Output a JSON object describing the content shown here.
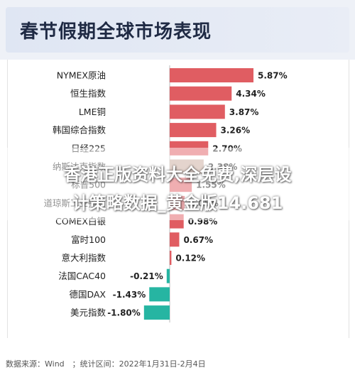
{
  "title": "春节假期全球市场表现",
  "overlay": {
    "line1": "香港正版资料大全免费,深层设",
    "line2": "计策略数据_黄金版14.681"
  },
  "source": "数据来源：Wind　；统计区间：2022年1月31日-2月4日",
  "colors": {
    "positive": "#e05d62",
    "negative": "#26b5a2",
    "muted": "#c9a99a"
  },
  "chart_data": {
    "type": "bar",
    "orientation": "horizontal",
    "categories": [
      "NYMEX原油",
      "恒生指数",
      "LME铜",
      "韩国综合指数",
      "日经225",
      "纳斯达克指数",
      "标普500",
      "道琼斯工业指数",
      "COMEX白银",
      "富时100",
      "意大利指数",
      "法国CAC40",
      "德国DAX",
      "美元指数"
    ],
    "values": [
      5.87,
      4.34,
      3.87,
      3.26,
      2.7,
      2.38,
      1.55,
      1.05,
      0.98,
      0.67,
      0.12,
      -0.21,
      -1.43,
      -1.8
    ],
    "labels": [
      "5.87%",
      "4.34%",
      "3.87%",
      "3.26%",
      "2.70%",
      "2.38%",
      "1.55%",
      "1.05%",
      "0.98%",
      "0.67%",
      "0.12%",
      "-0.21%",
      "-1.43%",
      "-1.80%"
    ],
    "unit": "%",
    "xlim": [
      -1.8,
      5.87
    ]
  }
}
